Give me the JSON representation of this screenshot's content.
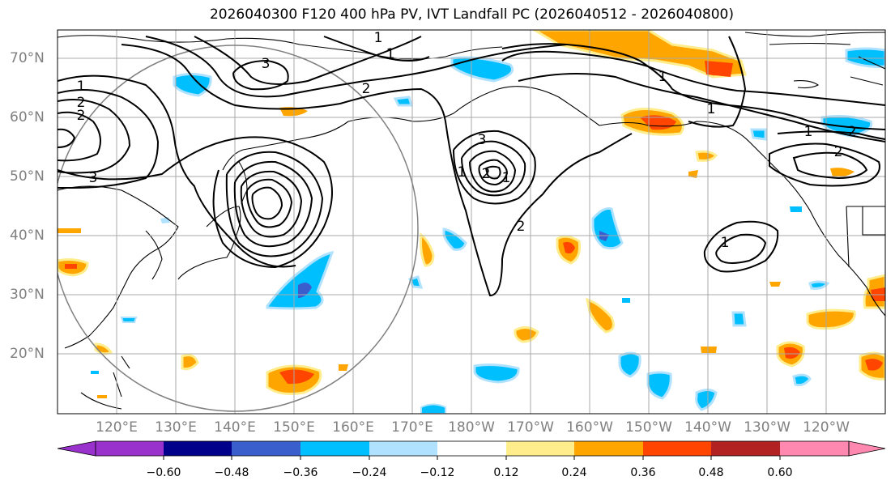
{
  "title": "2026040300 F120 400 hPa PV, IVT Landfall PC (2026040512 - 2026040800)",
  "lat_labels": [
    "70°N",
    "60°N",
    "50°N",
    "40°N",
    "30°N",
    "20°N"
  ],
  "lon_labels": [
    "120°E",
    "130°E",
    "140°E",
    "150°E",
    "160°E",
    "170°E",
    "180°W",
    "170°W",
    "160°W",
    "150°W",
    "140°W",
    "130°W",
    "120°W"
  ],
  "colorbar": {
    "ticks": [
      "−0.60",
      "−0.48",
      "−0.36",
      "−0.24",
      "−0.12",
      "0.12",
      "0.24",
      "0.36",
      "0.48",
      "0.60"
    ],
    "colors": [
      "#9932cc",
      "#00008b",
      "#3a5fcd",
      "#00bfff",
      "#b0e2ff",
      "#ffffff",
      "#ffec8b",
      "#ffa500",
      "#ff4500",
      "#b22222",
      "#ff88b0"
    ]
  },
  "contour_labels": [
    "1",
    "1",
    "1",
    "2",
    "2",
    "2",
    "3",
    "3",
    "3",
    "1",
    "2",
    "1",
    "2",
    "1",
    "1",
    "1",
    "2",
    "2",
    "1"
  ]
}
